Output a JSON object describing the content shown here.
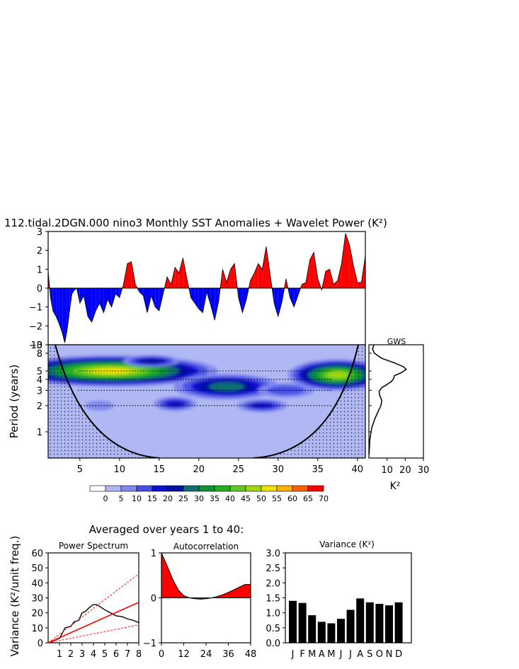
{
  "title": "112.tidal.2DGN.000 nino3 Monthly SST Anomalies + Wavelet Power (K²)",
  "chart_data": [
    {
      "type": "area",
      "name": "sst-anomaly-series",
      "xlim": [
        1,
        41
      ],
      "ylim": [
        -3,
        3
      ],
      "yticks": [
        3,
        2,
        1,
        0,
        -1,
        -2,
        -3
      ],
      "colors": {
        "positive": "#ff0000",
        "negative": "#0000ff"
      },
      "x": [
        1.0,
        1.3,
        1.6,
        2.0,
        2.4,
        2.8,
        3.1,
        3.4,
        3.7,
        4.0,
        4.3,
        4.6,
        5.0,
        5.5,
        6.0,
        6.5,
        7.0,
        7.5,
        8.0,
        8.5,
        9.0,
        9.5,
        10.0,
        10.5,
        11.0,
        11.5,
        12.0,
        12.5,
        13.0,
        13.5,
        14.0,
        14.5,
        15.0,
        15.5,
        16.0,
        16.5,
        17.0,
        17.5,
        18.0,
        18.5,
        19.0,
        19.5,
        20.0,
        20.5,
        21.0,
        21.5,
        22.0,
        22.5,
        23.0,
        23.5,
        24.0,
        24.5,
        25.0,
        25.5,
        26.0,
        26.5,
        27.0,
        27.5,
        28.0,
        28.5,
        29.0,
        29.5,
        30.0,
        30.5,
        31.0,
        31.5,
        32.0,
        32.5,
        33.0,
        33.5,
        34.0,
        34.5,
        35.0,
        35.5,
        36.0,
        36.5,
        37.0,
        37.5,
        38.0,
        38.5,
        39.0,
        39.5,
        40.0,
        40.5,
        41.0
      ],
      "y": [
        0.9,
        -0.5,
        -1.2,
        -1.5,
        -1.9,
        -2.4,
        -2.9,
        -2.2,
        -1.2,
        -0.3,
        -0.1,
        0.0,
        -0.8,
        -0.4,
        -1.5,
        -1.8,
        -1.2,
        -0.8,
        -1.3,
        -0.6,
        -1.0,
        -0.3,
        -0.5,
        0.2,
        1.3,
        1.4,
        0.2,
        -0.2,
        -0.4,
        -1.3,
        -0.4,
        -1.0,
        -1.2,
        -0.3,
        0.6,
        0.2,
        1.1,
        0.8,
        1.6,
        0.5,
        -0.5,
        -0.8,
        -1.1,
        -1.3,
        -0.2,
        -0.9,
        -1.7,
        -0.7,
        1.0,
        0.3,
        1.0,
        1.3,
        -0.5,
        -1.3,
        -0.6,
        0.4,
        0.8,
        1.3,
        1.0,
        2.2,
        0.7,
        -0.8,
        -1.5,
        -0.7,
        0.5,
        -0.5,
        -1.0,
        -0.4,
        0.2,
        0.3,
        1.5,
        1.9,
        0.5,
        -0.1,
        0.9,
        1.0,
        0.2,
        0.4,
        1.3,
        2.9,
        2.3,
        1.2,
        0.3,
        0.3,
        1.7
      ]
    },
    {
      "type": "heatmap",
      "name": "wavelet-power-spectrum",
      "xlim": [
        1,
        41
      ],
      "xticks": [
        5,
        10,
        15,
        20,
        25,
        30,
        35,
        40
      ],
      "ylabel": "Period (years)",
      "yticks": [
        1,
        2,
        3,
        4,
        5,
        8,
        10
      ],
      "y_scale": "log",
      "ylim": [
        0.5,
        10
      ],
      "colorbar": {
        "labels": [
          "0",
          "5",
          "10",
          "15",
          "20",
          "25",
          "30",
          "35",
          "40",
          "45",
          "50",
          "55",
          "60",
          "65",
          "70"
        ],
        "colors": [
          "#ffffff",
          "#b0b8f4",
          "#8088ee",
          "#4850e4",
          "#1010cc",
          "#0010a0",
          "#107070",
          "#109030",
          "#20b020",
          "#60c820",
          "#a0d810",
          "#f0e000",
          "#ffb000",
          "#ff6000",
          "#ff0000"
        ]
      },
      "reference_periods": [
        2,
        3,
        4,
        5
      ],
      "features": [
        {
          "x_center": 9,
          "period": 5,
          "peak_level": 55
        },
        {
          "x_center": 23.5,
          "period": 3.3,
          "peak_level": 30
        },
        {
          "x_center": 37.5,
          "period": 4.5,
          "peak_level": 50
        }
      ]
    },
    {
      "type": "line",
      "name": "global-wavelet-spectrum",
      "title": "GWS",
      "xlabel": "K²",
      "xticks": [
        10,
        20,
        30
      ],
      "xlim": [
        0,
        30
      ],
      "y_scale": "log",
      "ylim": [
        0.5,
        10
      ],
      "period": [
        0.55,
        0.8,
        1.1,
        1.4,
        1.7,
        2.0,
        2.3,
        2.6,
        2.9,
        3.2,
        3.5,
        3.8,
        4.1,
        4.4,
        4.8,
        5.2,
        5.6,
        6.2,
        7.0,
        8.0,
        9.0,
        10.0
      ],
      "power": [
        0.1,
        0.5,
        1.5,
        3.2,
        5.0,
        6.6,
        7.1,
        6.0,
        5.6,
        7.0,
        10.0,
        12.5,
        13.6,
        14.0,
        18.0,
        20.5,
        19.0,
        14.0,
        7.0,
        3.0,
        2.0,
        2.8
      ]
    },
    {
      "type": "line",
      "name": "power-spectrum",
      "title": "Power Spectrum",
      "ylabel": "Variance (K²/unit freq.)",
      "xlim": [
        0,
        8
      ],
      "ylim": [
        0,
        60
      ],
      "xticks": [
        1,
        2,
        3,
        4,
        5,
        6,
        7,
        8
      ],
      "yticks": [
        0,
        10,
        20,
        30,
        40,
        50,
        60
      ],
      "series": [
        {
          "x": [
            0,
            1.0,
            1.5,
            2.0,
            2.3,
            2.7,
            3.0,
            3.3,
            3.7,
            4.0,
            4.3,
            4.6,
            5.0,
            5.5,
            6.0,
            6.5,
            7.0,
            7.5,
            8.0
          ],
          "y": [
            0,
            3,
            10,
            11,
            14,
            15,
            20,
            21,
            24,
            25.5,
            25.5,
            24,
            22,
            20,
            18,
            17.5,
            16,
            15,
            13.5
          ],
          "color": "#000000"
        },
        {
          "x": [
            0,
            8
          ],
          "y": [
            0,
            27
          ],
          "color": "#ff0000"
        },
        {
          "x": [
            0,
            8
          ],
          "y": [
            0,
            46
          ],
          "color": "#ff0000"
        },
        {
          "x": [
            0,
            8
          ],
          "y": [
            0,
            12
          ],
          "color": "#ff0000"
        }
      ]
    },
    {
      "type": "area",
      "name": "autocorrelation",
      "title": "Autocorrelation",
      "xlim": [
        0,
        48
      ],
      "ylim": [
        -1,
        1
      ],
      "xticks": [
        0,
        12,
        24,
        36,
        48
      ],
      "yticks": [
        1,
        0,
        -1
      ],
      "x": [
        0,
        3,
        6,
        9,
        12,
        15,
        18,
        21,
        24,
        27,
        30,
        33,
        36,
        39,
        42,
        45,
        48
      ],
      "y": [
        1.0,
        0.72,
        0.42,
        0.18,
        0.05,
        0.0,
        -0.02,
        -0.03,
        -0.02,
        0.0,
        0.03,
        0.07,
        0.12,
        0.18,
        0.24,
        0.3,
        0.3
      ],
      "color": "#ff0000"
    },
    {
      "type": "bar",
      "name": "monthly-variance",
      "title": "Variance (K²)",
      "categories": [
        "J",
        "F",
        "M",
        "A",
        "M",
        "J",
        "J",
        "A",
        "S",
        "O",
        "N",
        "D"
      ],
      "values": [
        1.4,
        1.33,
        0.92,
        0.7,
        0.65,
        0.8,
        1.1,
        1.48,
        1.35,
        1.3,
        1.25,
        1.35
      ],
      "ylim": [
        0,
        3
      ],
      "yticks": [
        "0.0",
        "0.5",
        "1.0",
        "1.5",
        "2.0",
        "2.5",
        "3.0"
      ]
    }
  ],
  "averaged_caption": "Averaged over years 1 to 40:"
}
